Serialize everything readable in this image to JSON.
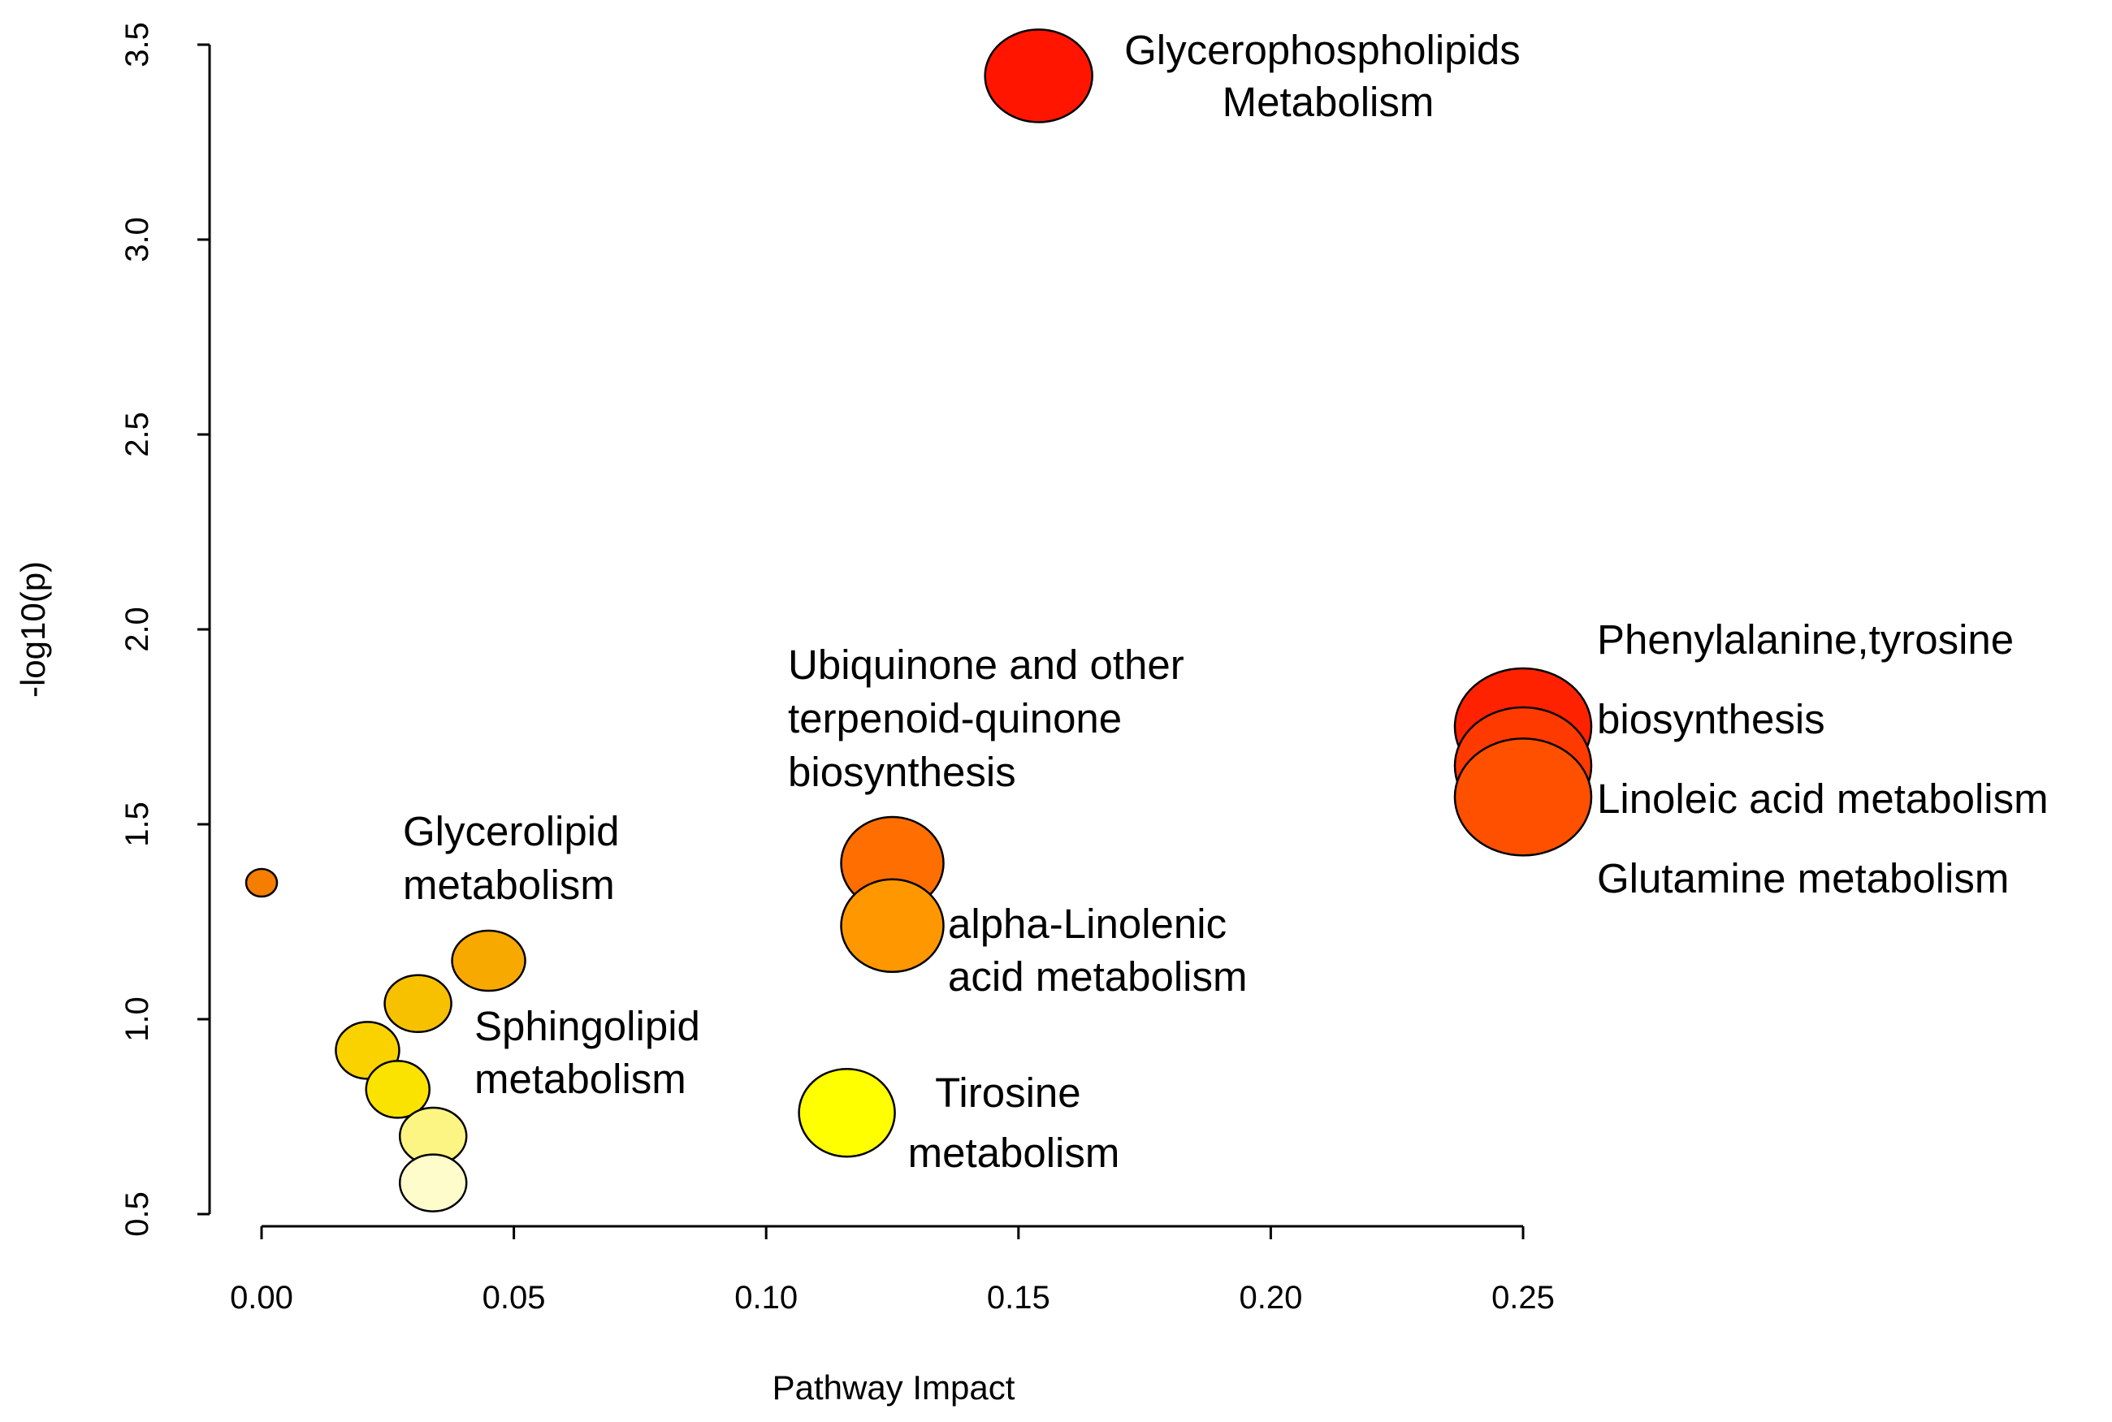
{
  "chart_data": {
    "type": "scatter",
    "title": "",
    "xlabel": "Pathway Impact",
    "ylabel": "-log10(p)",
    "xlim": [
      0.0,
      0.25
    ],
    "ylim": [
      0.5,
      3.5
    ],
    "xticks": [
      "0.00",
      "0.05",
      "0.10",
      "0.15",
      "0.20",
      "0.25"
    ],
    "yticks": [
      "0.5",
      "1.0",
      "1.5",
      "2.0",
      "2.5",
      "3.0",
      "3.5"
    ],
    "points": [
      {
        "x": 0.154,
        "y": 3.42,
        "color": "#ff1500"
      },
      {
        "x": 0.25,
        "y": 1.75,
        "color": "#ff2200"
      },
      {
        "x": 0.25,
        "y": 1.65,
        "color": "#ff3a00"
      },
      {
        "x": 0.25,
        "y": 1.57,
        "color": "#ff5000"
      },
      {
        "x": 0.125,
        "y": 1.4,
        "color": "#ff6e00"
      },
      {
        "x": 0.125,
        "y": 1.24,
        "color": "#ff9800"
      },
      {
        "x": 0.0,
        "y": 1.35,
        "color": "#f57d00"
      },
      {
        "x": 0.045,
        "y": 1.15,
        "color": "#f7a900"
      },
      {
        "x": 0.031,
        "y": 1.04,
        "color": "#f8c100"
      },
      {
        "x": 0.021,
        "y": 0.92,
        "color": "#f9d200"
      },
      {
        "x": 0.027,
        "y": 0.82,
        "color": "#fbe300"
      },
      {
        "x": 0.116,
        "y": 0.76,
        "color": "#ffff00"
      },
      {
        "x": 0.034,
        "y": 0.7,
        "color": "#fdf583"
      },
      {
        "x": 0.034,
        "y": 0.58,
        "color": "#fffccc"
      }
    ],
    "annotations": [
      {
        "lines": [
          "Glycerophospholipids",
          "Metabolism"
        ]
      },
      {
        "lines": [
          "Phenylalanine,tyrosine",
          "biosynthesis",
          "Linoleic acid metabolism",
          "Glutamine metabolism"
        ]
      },
      {
        "lines": [
          "Ubiquinone and other",
          "terpenoid-quinone",
          "biosynthesis"
        ]
      },
      {
        "lines": [
          "Glycerolipid",
          "metabolism"
        ]
      },
      {
        "lines": [
          "alpha-Linolenic",
          "acid metabolism"
        ]
      },
      {
        "lines": [
          "Sphingolipid",
          "metabolism"
        ]
      },
      {
        "lines": [
          "Tirosine",
          "metabolism"
        ]
      }
    ]
  }
}
